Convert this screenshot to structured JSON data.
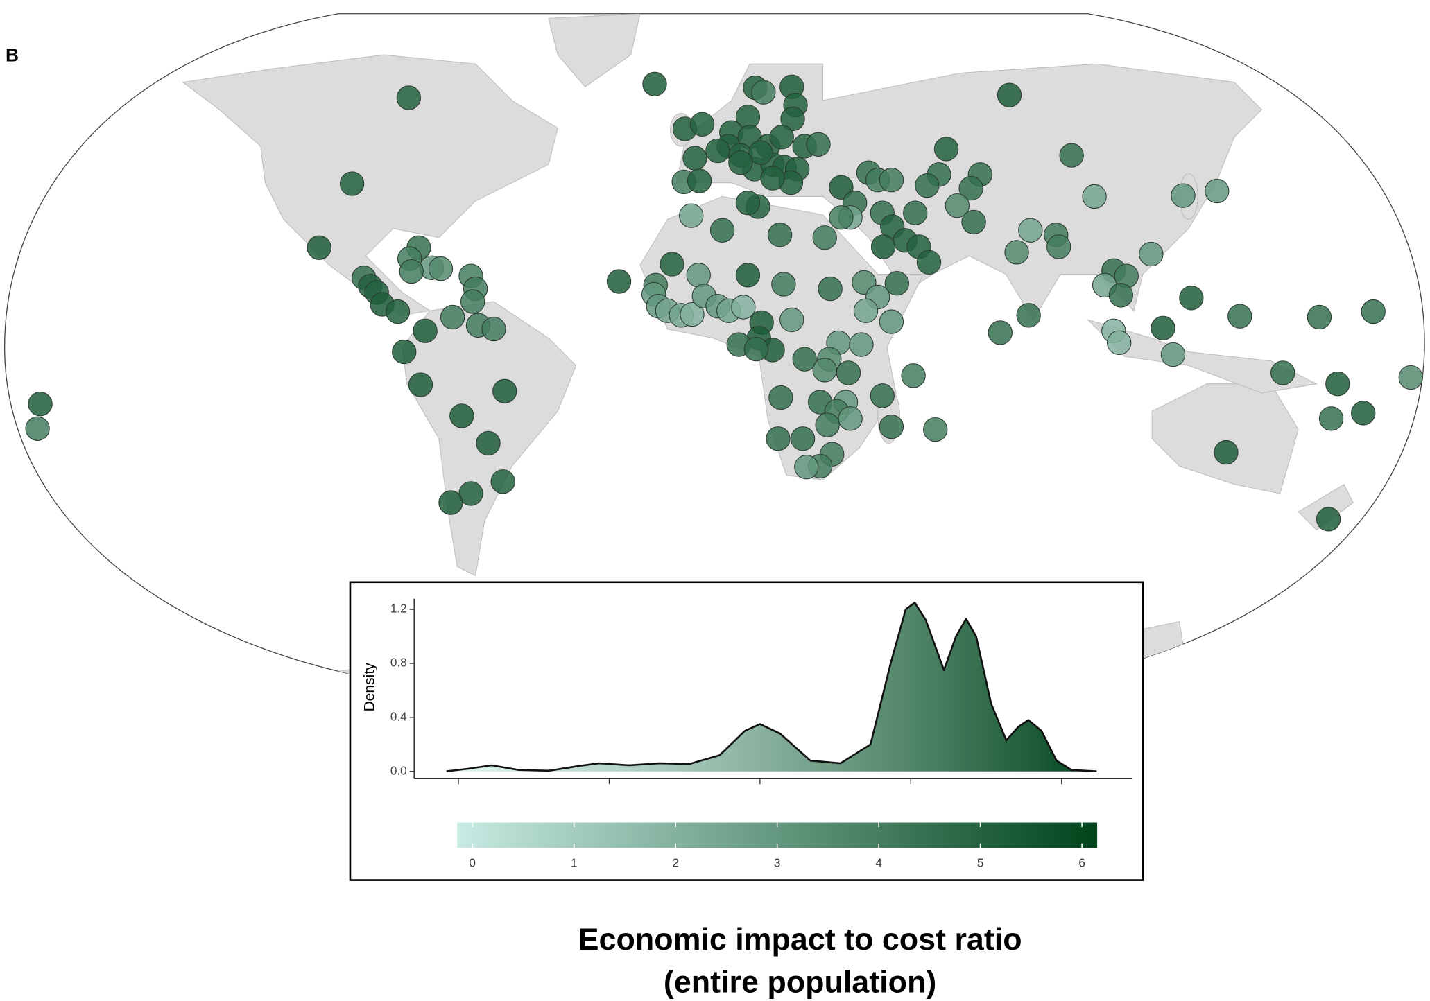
{
  "panel_label": "B",
  "title": [
    "Economic impact to cost ratio",
    "(entire population)"
  ],
  "chart_data": [
    {
      "type": "map",
      "values": [
        5,
        5,
        5.2,
        4.5,
        4,
        3,
        3.5,
        4,
        4.5,
        5,
        5,
        5.2,
        5,
        4,
        4,
        4,
        4,
        4,
        4,
        5.2,
        5.2,
        5.2,
        5.2,
        5.2,
        5.2,
        5,
        5,
        5.2,
        5.2,
        4,
        5.2,
        5,
        4,
        5.2,
        5,
        5,
        5,
        5,
        5,
        5,
        5,
        5,
        5,
        5,
        5,
        5,
        4.5,
        5,
        5,
        5,
        5,
        5,
        5,
        5,
        5,
        4,
        5,
        5,
        5,
        5.2,
        5,
        4.5,
        4.5,
        4,
        4,
        4.5,
        4.5,
        4.5,
        4.5,
        5.2,
        4.5,
        2.5,
        4,
        4.5,
        4.5,
        3.5,
        4.5,
        5,
        5,
        5,
        5.2,
        5,
        4.5,
        2.5,
        2.5,
        3.5,
        4,
        4,
        3,
        3,
        3,
        2.5,
        4.5,
        5,
        5,
        4.5,
        4,
        5,
        5.2,
        3,
        4,
        3,
        3,
        2.5,
        2.5,
        2,
        3,
        3,
        2.5,
        2,
        5.2,
        4,
        4.5,
        3.5,
        3,
        2.5,
        3,
        5.2,
        3,
        5.2,
        5.2,
        4.5,
        4.5,
        4.5,
        3,
        3,
        3.5,
        3.5,
        4.5,
        4,
        4.5,
        4.5,
        4.5,
        3,
        4,
        3,
        4,
        4.5,
        4,
        4.5,
        4.5,
        4,
        4,
        3,
        4.5,
        4.5,
        4.5,
        4,
        2.5,
        4.5,
        5.2,
        5.2,
        2,
        2,
        3,
        4.5,
        4.5,
        4.5,
        3.5,
        4.5,
        5.2,
        4.5,
        5.2,
        5.2,
        5.2
      ]
    },
    {
      "type": "density",
      "ylabel": "Density",
      "x": [
        -0.12,
        0.1,
        0.33,
        0.6,
        0.9,
        1.2,
        1.4,
        1.7,
        2.0,
        2.3,
        2.6,
        2.85,
        3.0,
        3.2,
        3.5,
        3.8,
        4.1,
        4.3,
        4.45,
        4.54,
        4.65,
        4.83,
        4.95,
        5.05,
        5.15,
        5.3,
        5.45,
        5.57,
        5.67,
        5.8,
        5.95,
        6.1,
        6.35
      ],
      "values": [
        0,
        0.02,
        0.045,
        0.01,
        0.005,
        0.04,
        0.06,
        0.045,
        0.06,
        0.055,
        0.12,
        0.3,
        0.35,
        0.28,
        0.08,
        0.06,
        0.2,
        0.8,
        1.2,
        1.25,
        1.12,
        0.75,
        1.0,
        1.13,
        1.0,
        0.5,
        0.23,
        0.33,
        0.38,
        0.3,
        0.08,
        0.01,
        0
      ],
      "xlim": [
        -0.44,
        6.7
      ],
      "ylim": [
        -0.054,
        1.28
      ],
      "xticks": [
        0,
        1.5,
        3,
        4.5,
        6
      ],
      "yticks": [
        {
          "value": 0,
          "label": "0.0"
        },
        0.4,
        0.8,
        1.2
      ]
    },
    {
      "type": "colorbar",
      "xlim": [
        -0.15,
        6.15
      ],
      "xticks": [
        0,
        1,
        2,
        3,
        4,
        5,
        6
      ],
      "colors": [
        "#c8ebe3",
        "#00441b"
      ]
    }
  ]
}
